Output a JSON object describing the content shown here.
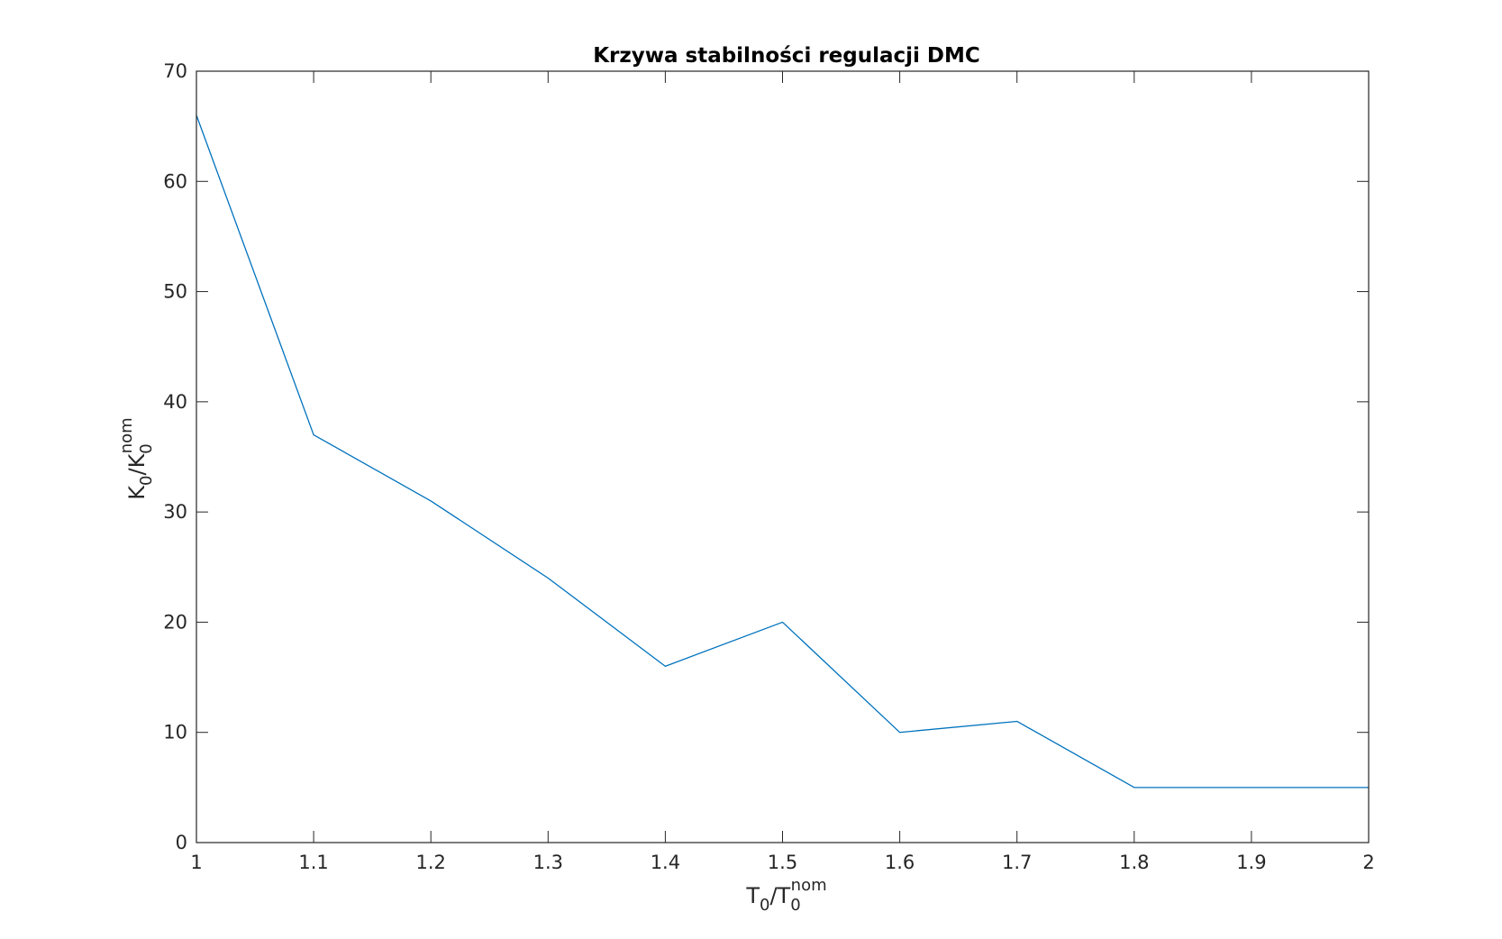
{
  "chart_data": {
    "type": "line",
    "title": "Krzywa stabilności regulacji DMC",
    "xlabel": {
      "base": "T",
      "sub1": "0",
      "slash": "/T",
      "sub2": "0",
      "sup": "nom"
    },
    "ylabel": {
      "base": "K",
      "sub1": "0",
      "slash": "/K",
      "sub2": "0",
      "sup": "nom"
    },
    "xlim": [
      1,
      2
    ],
    "ylim": [
      0,
      70
    ],
    "x_ticks": [
      1,
      1.1,
      1.2,
      1.3,
      1.4,
      1.5,
      1.6,
      1.7,
      1.8,
      1.9,
      2
    ],
    "x_tick_labels": [
      "1",
      "1.1",
      "1.2",
      "1.3",
      "1.4",
      "1.5",
      "1.6",
      "1.7",
      "1.8",
      "1.9",
      "2"
    ],
    "y_ticks": [
      0,
      10,
      20,
      30,
      40,
      50,
      60,
      70
    ],
    "y_tick_labels": [
      "0",
      "10",
      "20",
      "30",
      "40",
      "50",
      "60",
      "70"
    ],
    "grid": false,
    "series": [
      {
        "x": [
          1,
          1.1,
          1.2,
          1.3,
          1.4,
          1.5,
          1.6,
          1.7,
          1.8,
          1.9,
          2
        ],
        "values": [
          66,
          37,
          31,
          24,
          16,
          20,
          10,
          11,
          5,
          5,
          5
        ],
        "color": "#0072BD"
      }
    ]
  }
}
